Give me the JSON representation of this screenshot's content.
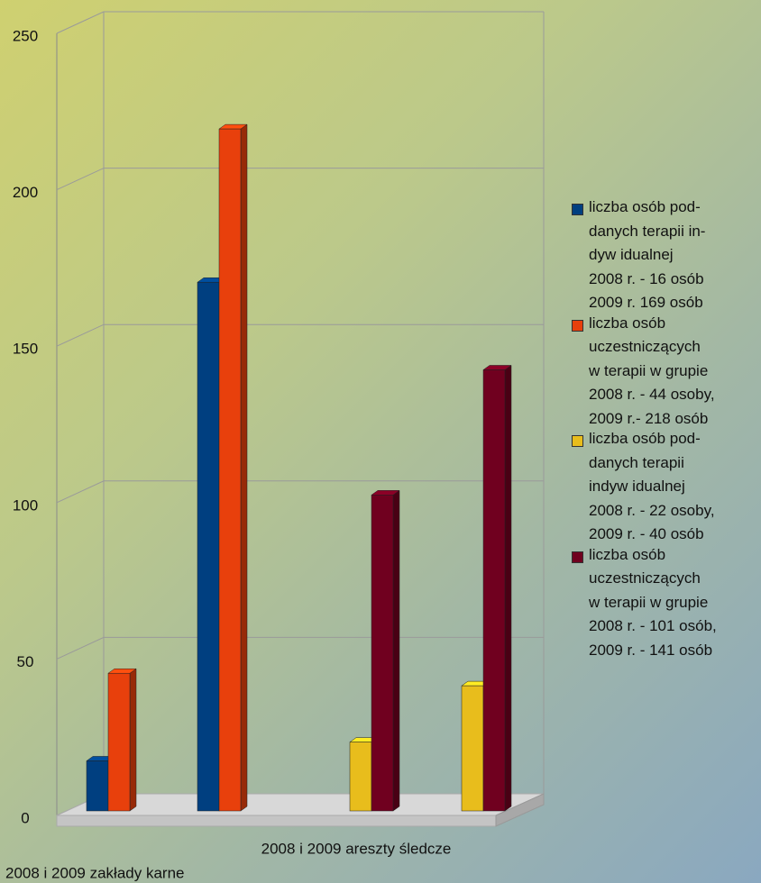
{
  "chart_data": {
    "type": "bar3d",
    "categories": [
      null,
      null,
      null,
      null
    ],
    "series": [
      {
        "name": "liczba osób pod-\ndanych terapii in-\ndyw idualnej\n2008 r. - 16 osób\n2009 r. 169 osób",
        "color": "#003f80",
        "values": [
          16,
          169,
          null,
          null
        ]
      },
      {
        "name": "liczba osób\nuczestniczących\nw   terapii w grupie\n2008 r. - 44 osoby,\n2009 r.-  218  osób",
        "color": "#e8400c",
        "values": [
          44,
          218,
          null,
          null
        ]
      },
      {
        "name": "liczba osób pod-\ndanych terapii\nindyw idualnej\n2008 r. - 22 osoby,\n2009 r. - 40  osób",
        "color": "#e8bd1c",
        "values": [
          null,
          null,
          22,
          40
        ]
      },
      {
        "name": "liczba osób\nuczestniczących\nw   terapii w grupie\n2008 r. - 101 osób,\n2009 r. - 141  osób",
        "color": "#70001f",
        "values": [
          null,
          null,
          101,
          141
        ]
      }
    ],
    "annotations": [
      "2008 i 2009  areszty śledcze",
      "2008 i 2009 zakłady karne"
    ],
    "ylim": [
      0,
      250
    ],
    "yticks": [
      0,
      50,
      100,
      150,
      200,
      250
    ],
    "grid": true
  }
}
